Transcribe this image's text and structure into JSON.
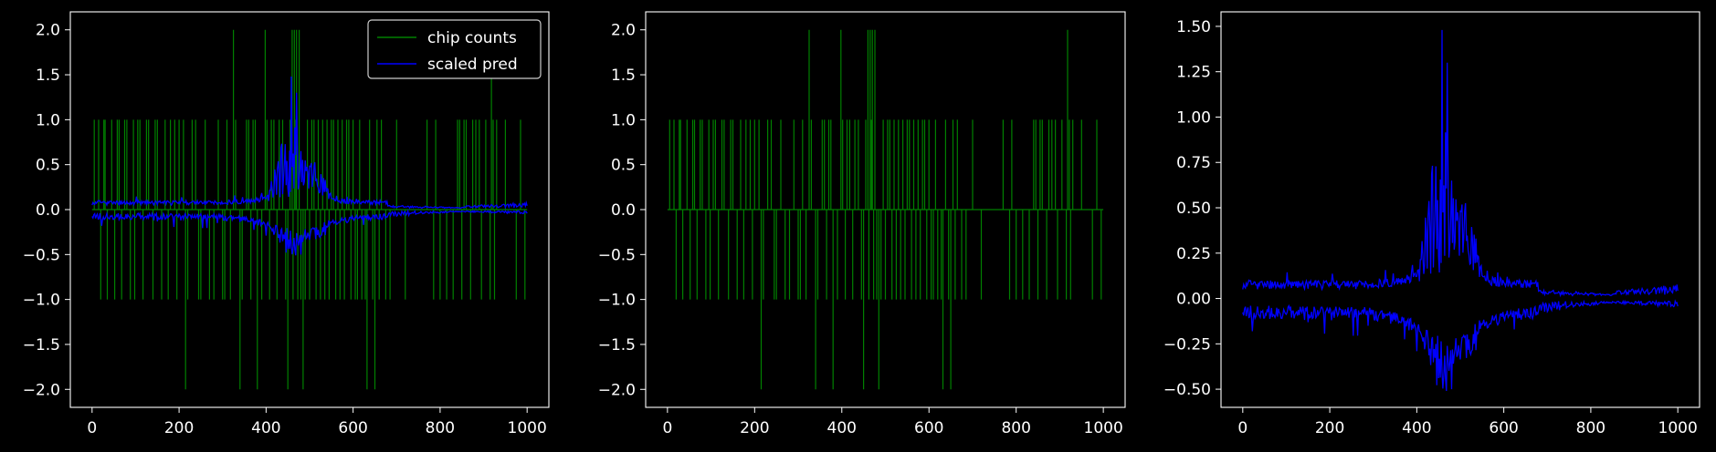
{
  "figure": {
    "background": "#000000",
    "foreground": "#ffffff"
  },
  "chart_data": [
    {
      "type": "line",
      "panel": 1,
      "xlim": [
        -50,
        1050
      ],
      "ylim": [
        -2.2,
        2.2
      ],
      "xticks": [
        0,
        200,
        400,
        600,
        800,
        1000
      ],
      "yticks": [
        2.0,
        1.5,
        1.0,
        0.5,
        0.0,
        -0.5,
        -1.0,
        -1.5,
        -2.0
      ],
      "ytick_labels": [
        "2.0",
        "1.5",
        "1.0",
        "0.5",
        "0.0",
        "−0.5",
        "−1.0",
        "−1.5",
        "−2.0"
      ],
      "grid": false,
      "legend_position": "top-right",
      "series": [
        {
          "name": "chip counts",
          "color": "#008000",
          "kind": "spikes",
          "x": [
            5,
            15,
            20,
            27,
            30,
            35,
            45,
            52,
            58,
            62,
            68,
            75,
            80,
            88,
            95,
            98,
            105,
            110,
            117,
            125,
            130,
            140,
            145,
            150,
            160,
            168,
            175,
            180,
            190,
            195,
            200,
            210,
            215,
            220,
            230,
            238,
            245,
            250,
            260,
            270,
            280,
            290,
            300,
            305,
            310,
            318,
            325,
            330,
            340,
            345,
            355,
            360,
            365,
            370,
            375,
            380,
            390,
            398,
            402,
            408,
            412,
            418,
            425,
            430,
            438,
            445,
            450,
            455,
            460,
            462,
            465,
            468,
            470,
            473,
            476,
            480,
            485,
            490,
            495,
            500,
            505,
            510,
            515,
            520,
            525,
            530,
            535,
            540,
            545,
            550,
            555,
            560,
            565,
            570,
            575,
            580,
            585,
            590,
            595,
            600,
            605,
            610,
            615,
            620,
            628,
            632,
            638,
            645,
            650,
            655,
            660,
            665,
            675,
            685,
            700,
            720,
            770,
            785,
            790,
            800,
            815,
            830,
            840,
            845,
            850,
            855,
            860,
            870,
            875,
            882,
            890,
            895,
            905,
            915,
            918,
            922,
            925,
            930,
            950,
            975,
            985,
            995
          ],
          "values": [
            1,
            1,
            -1,
            1,
            1,
            -1,
            1,
            -1,
            1,
            1,
            -1,
            1,
            1,
            -1,
            1,
            -1,
            1,
            1,
            -1,
            1,
            1,
            -1,
            1,
            1,
            -1,
            1,
            -1,
            1,
            1,
            -1,
            1,
            1,
            -2,
            -1,
            1,
            1,
            -1,
            -1,
            1,
            -1,
            -1,
            1,
            -1,
            -1,
            1,
            -1,
            2,
            1,
            -2,
            -1,
            1,
            1,
            -1,
            1,
            1,
            -2,
            -1,
            2,
            1,
            -1,
            1,
            1,
            -1,
            1,
            1,
            -1,
            -2,
            1,
            2,
            -1,
            2,
            1,
            2,
            -1,
            2,
            -1,
            -2,
            -1,
            1,
            -1,
            1,
            1,
            -1,
            1,
            -1,
            1,
            -1,
            1,
            -1,
            1,
            1,
            -1,
            1,
            -1,
            1,
            -1,
            1,
            1,
            -1,
            1,
            -1,
            -1,
            1,
            -1,
            -1,
            -2,
            1,
            -1,
            -2,
            1,
            -1,
            1,
            -1,
            -1,
            1,
            -1,
            1,
            -1,
            1,
            -1,
            -1,
            -1,
            1,
            1,
            -1,
            1,
            1,
            -1,
            1,
            1,
            1,
            -1,
            1,
            -1,
            2,
            1,
            -1,
            1,
            1,
            -1,
            1,
            -1
          ]
        },
        {
          "name": "scaled pred",
          "color": "#0000ff",
          "kind": "band"
        }
      ]
    },
    {
      "type": "line",
      "panel": 2,
      "xlim": [
        -50,
        1050
      ],
      "ylim": [
        -2.2,
        2.2
      ],
      "xticks": [
        0,
        200,
        400,
        600,
        800,
        1000
      ],
      "yticks": [
        2.0,
        1.5,
        1.0,
        0.5,
        0.0,
        -0.5,
        -1.0,
        -1.5,
        -2.0
      ],
      "ytick_labels": [
        "2.0",
        "1.5",
        "1.0",
        "0.5",
        "0.0",
        "−0.5",
        "−1.0",
        "−1.5",
        "−2.0"
      ],
      "grid": false,
      "series": [
        {
          "color": "#008000",
          "kind": "spikes",
          "x": [
            5,
            15,
            20,
            27,
            30,
            35,
            45,
            52,
            58,
            62,
            68,
            75,
            80,
            88,
            95,
            98,
            105,
            110,
            117,
            125,
            130,
            140,
            145,
            150,
            160,
            168,
            175,
            180,
            190,
            195,
            200,
            210,
            215,
            220,
            230,
            238,
            245,
            250,
            260,
            270,
            280,
            290,
            300,
            305,
            310,
            318,
            325,
            330,
            340,
            345,
            355,
            360,
            365,
            370,
            375,
            380,
            390,
            398,
            402,
            408,
            412,
            418,
            425,
            430,
            438,
            445,
            450,
            455,
            460,
            462,
            465,
            468,
            470,
            473,
            476,
            480,
            485,
            490,
            495,
            500,
            505,
            510,
            515,
            520,
            525,
            530,
            535,
            540,
            545,
            550,
            555,
            560,
            565,
            570,
            575,
            580,
            585,
            590,
            595,
            600,
            605,
            610,
            615,
            620,
            628,
            632,
            638,
            645,
            650,
            655,
            660,
            665,
            675,
            685,
            700,
            720,
            770,
            785,
            790,
            800,
            815,
            830,
            840,
            845,
            850,
            855,
            860,
            870,
            875,
            882,
            890,
            895,
            905,
            915,
            918,
            922,
            925,
            930,
            950,
            975,
            985,
            995
          ],
          "values": [
            1,
            1,
            -1,
            1,
            1,
            -1,
            1,
            -1,
            1,
            1,
            -1,
            1,
            1,
            -1,
            1,
            -1,
            1,
            1,
            -1,
            1,
            1,
            -1,
            1,
            1,
            -1,
            1,
            -1,
            1,
            1,
            -1,
            1,
            1,
            -2,
            -1,
            1,
            1,
            -1,
            -1,
            1,
            -1,
            -1,
            1,
            -1,
            -1,
            1,
            -1,
            2,
            1,
            -2,
            -1,
            1,
            1,
            -1,
            1,
            1,
            -2,
            -1,
            2,
            1,
            -1,
            1,
            1,
            -1,
            1,
            1,
            -1,
            -2,
            1,
            2,
            -1,
            2,
            1,
            2,
            -1,
            2,
            -1,
            -2,
            -1,
            1,
            -1,
            1,
            1,
            -1,
            1,
            -1,
            1,
            -1,
            1,
            -1,
            1,
            1,
            -1,
            1,
            -1,
            1,
            -1,
            1,
            1,
            -1,
            1,
            -1,
            -1,
            1,
            -1,
            -1,
            -2,
            1,
            -1,
            -2,
            1,
            -1,
            1,
            -1,
            -1,
            1,
            -1,
            1,
            -1,
            1,
            -1,
            -1,
            -1,
            1,
            1,
            -1,
            1,
            1,
            -1,
            1,
            1,
            1,
            -1,
            1,
            -1,
            2,
            1,
            -1,
            1,
            1,
            -1,
            1,
            -1
          ]
        }
      ]
    },
    {
      "type": "line",
      "panel": 3,
      "xlim": [
        -50,
        1050
      ],
      "ylim": [
        -0.6,
        1.58
      ],
      "xticks": [
        0,
        200,
        400,
        600,
        800,
        1000
      ],
      "yticks": [
        1.5,
        1.25,
        1.0,
        0.75,
        0.5,
        0.25,
        0.0,
        -0.25,
        -0.5
      ],
      "ytick_labels": [
        "1.50",
        "1.25",
        "1.00",
        "0.75",
        "0.50",
        "0.25",
        "0.00",
        "−0.25",
        "−0.50"
      ],
      "grid": false,
      "series": [
        {
          "color": "#0000ff",
          "kind": "band"
        }
      ]
    }
  ],
  "legend": {
    "entries": [
      "chip counts",
      "scaled pred"
    ]
  }
}
